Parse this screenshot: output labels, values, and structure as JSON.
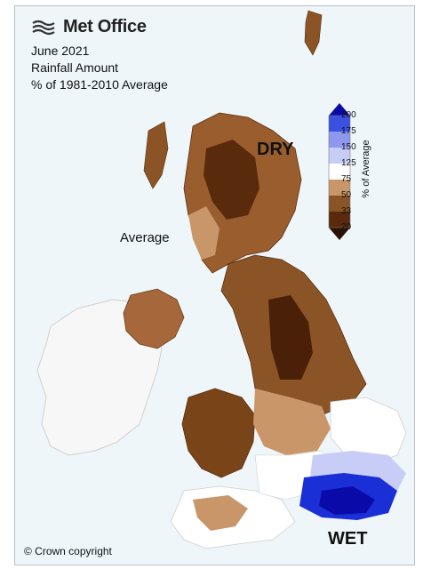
{
  "header": {
    "brand": "Met Office",
    "title_lines": [
      "June 2021",
      "Rainfall Amount",
      "% of 1981-2010 Average"
    ]
  },
  "annotations": {
    "dry": "DRY",
    "wet": "WET",
    "average": "Average"
  },
  "legend": {
    "title": "% of Average",
    "ticks": [
      "200",
      "175",
      "150",
      "125",
      "75",
      "50",
      "33",
      "20"
    ],
    "colors": [
      "#0a0aa8",
      "#3b4fe0",
      "#8e98ef",
      "#c8cdf7",
      "#ffffff",
      "#c9966a",
      "#8b5426",
      "#4a2108"
    ]
  },
  "footer": {
    "copyright": "© Crown copyright"
  },
  "colors": {
    "background": "#eef6f9",
    "land_ireland": "#f7f7f7",
    "very_dry": "#4a2108",
    "dry": "#8b5426",
    "moderately_dry": "#c9966a",
    "wet_light": "#c8cdf7",
    "wet_dark": "#1b2fd6"
  }
}
